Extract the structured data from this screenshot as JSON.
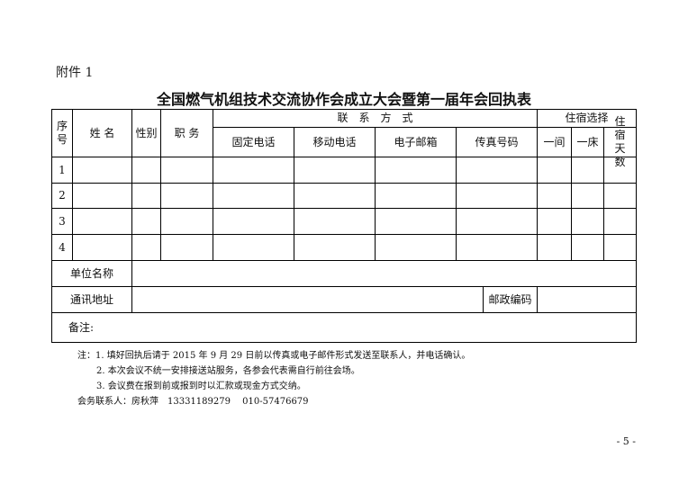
{
  "attachment_label": "附件 1",
  "title": "全国燃气机组技术交流协作会成立大会暨第一届年会回执表",
  "headers": {
    "seq": "序号",
    "name": "姓 名",
    "gender": "性别",
    "position": "职 务",
    "contact": "联　系　方　式",
    "landline": "固定电话",
    "mobile": "移动电话",
    "email": "电子邮箱",
    "fax": "传真号码",
    "lodging": "住宿选择",
    "room": "一间",
    "bed": "一床",
    "days": "住宿天数"
  },
  "rows": [
    "1",
    "2",
    "3",
    "4"
  ],
  "unit_label": "单位名称",
  "address_label": "通讯地址",
  "postcode_label": "邮政编码",
  "remarks_label": "备注:",
  "notes": [
    "注：1. 填好回执后请于 2015 年 9 月 29 日前以传真或电子邮件形式发送至联系人，并电话确认。",
    "2. 本次会议不统一安排接送站服务，各参会代表需自行前往会场。",
    "3. 会议费在报到前或报到时以汇款或现金方式交纳。"
  ],
  "contact_line": "会务联系人：房秋萍　13331189279　 010-57476679",
  "page_number": "- 5 -"
}
